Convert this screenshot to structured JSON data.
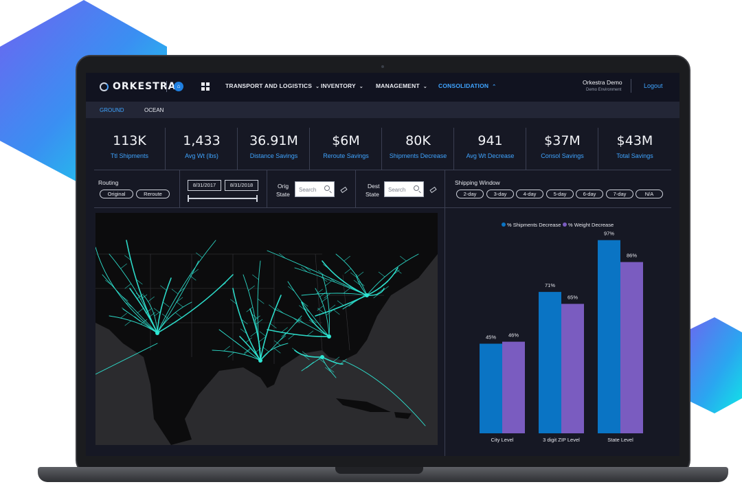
{
  "brand": {
    "name": "ORKESTRA",
    "user_initial": "⌂"
  },
  "nav": {
    "items": [
      {
        "label": "TRANSPORT AND LOGISTICS",
        "icon": "chevron-down-icon"
      },
      {
        "label": "INVENTORY",
        "icon": "chevron-down-icon"
      },
      {
        "label": "MANAGEMENT",
        "icon": "chevron-down-icon"
      },
      {
        "label": "CONSOLIDATION",
        "icon": "chevron-up-icon",
        "active": true
      }
    ],
    "chev_down": "⌄",
    "chev_up": "⌃"
  },
  "user": {
    "name": "Orkestra Demo",
    "environment": "Demo Environment",
    "logout_label": "Logout"
  },
  "subnav": {
    "tabs": [
      {
        "label": "GROUND",
        "active": true
      },
      {
        "label": "OCEAN",
        "active": false
      }
    ]
  },
  "kpis": [
    {
      "value": "113K",
      "label": "Ttl Shipments"
    },
    {
      "value": "1,433",
      "label": "Avg Wt (lbs)"
    },
    {
      "value": "36.91M",
      "label": "Distance Savings"
    },
    {
      "value": "$6M",
      "label": "Reroute Savings"
    },
    {
      "value": "80K",
      "label": "Shipments Decrease"
    },
    {
      "value": "941",
      "label": "Avg Wt Decrease"
    },
    {
      "value": "$37M",
      "label": "Consol Savings"
    },
    {
      "value": "$43M",
      "label": "Total Savings"
    }
  ],
  "filters": {
    "routing_label": "Routing",
    "routing_options": [
      "Original",
      "Reroute"
    ],
    "date_start": "8/31/2017",
    "date_end": "8/31/2018",
    "orig_state_label_1": "Orig",
    "orig_state_label_2": "State",
    "dest_state_label_1": "Dest",
    "dest_state_label_2": "State",
    "search_placeholder": "Search",
    "shipping_window_label": "Shipping Window",
    "shipping_window_options": [
      "2-day",
      "3-day",
      "4-day",
      "5-day",
      "6-day",
      "7-day",
      "N/A"
    ]
  },
  "colors": {
    "accent": "#3fa4ff",
    "route": "#2ee6d3",
    "series_1": "#0a74c4",
    "series_2": "#7a5cc0"
  },
  "chart_data": {
    "type": "bar",
    "title": "",
    "categories": [
      "City Level",
      "3 digit ZIP Level",
      "State Level"
    ],
    "series": [
      {
        "name": "% Shipments Decrease",
        "values": [
          45,
          71,
          97
        ],
        "labels": [
          "45%",
          "71%",
          "97%"
        ]
      },
      {
        "name": "% Weight Decrease",
        "values": [
          46,
          65,
          86
        ],
        "labels": [
          "46%",
          "65%",
          "86%"
        ]
      }
    ],
    "ylim": [
      0,
      100
    ],
    "legend": "top-center",
    "grid": false,
    "xlabel": "",
    "ylabel": ""
  }
}
